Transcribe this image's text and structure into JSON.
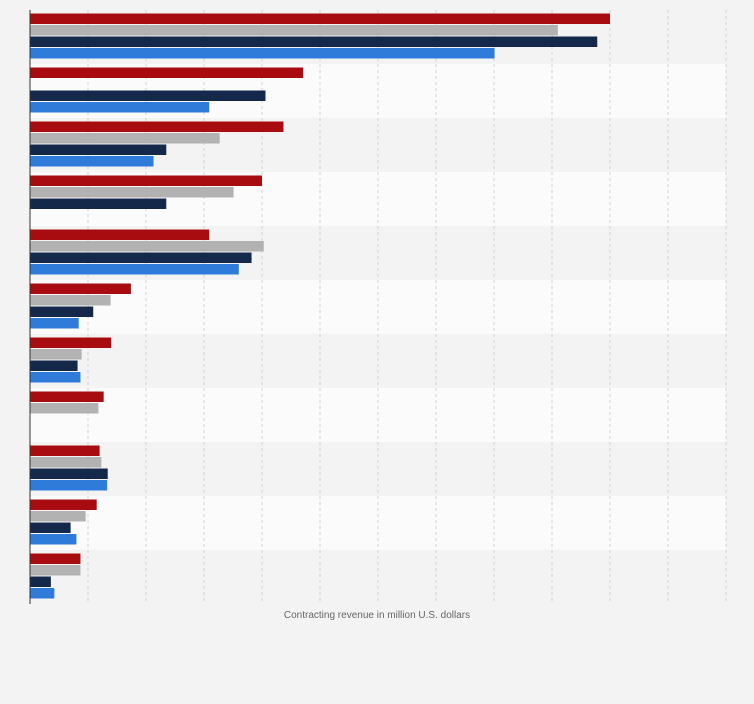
{
  "chart_data": {
    "type": "bar",
    "orientation": "horizontal",
    "title": "",
    "xlabel": "Contracting revenue in million U.S. dollars",
    "ylabel": "",
    "categories": [
      "",
      "",
      "",
      "",
      "",
      "",
      "",
      "",
      "",
      "",
      ""
    ],
    "xlim": [
      0,
      12000
    ],
    "grid": true,
    "legend": "none",
    "series": [
      {
        "color": "#a80c10",
        "values": [
          10000,
          4710,
          4370,
          4000,
          3090,
          1740,
          1400,
          1270,
          1200,
          1150,
          870
        ]
      },
      {
        "color": "#b2b2b2",
        "values": [
          9100,
          null,
          3270,
          3510,
          4030,
          1390,
          890,
          1180,
          1230,
          960,
          870
        ]
      },
      {
        "color": "#14294a",
        "values": [
          9780,
          4060,
          2350,
          2350,
          3820,
          1090,
          820,
          null,
          1340,
          700,
          360
        ]
      },
      {
        "color": "#2f7bd9",
        "values": [
          8010,
          3090,
          2130,
          null,
          3600,
          840,
          870,
          null,
          1330,
          800,
          420
        ]
      }
    ]
  }
}
